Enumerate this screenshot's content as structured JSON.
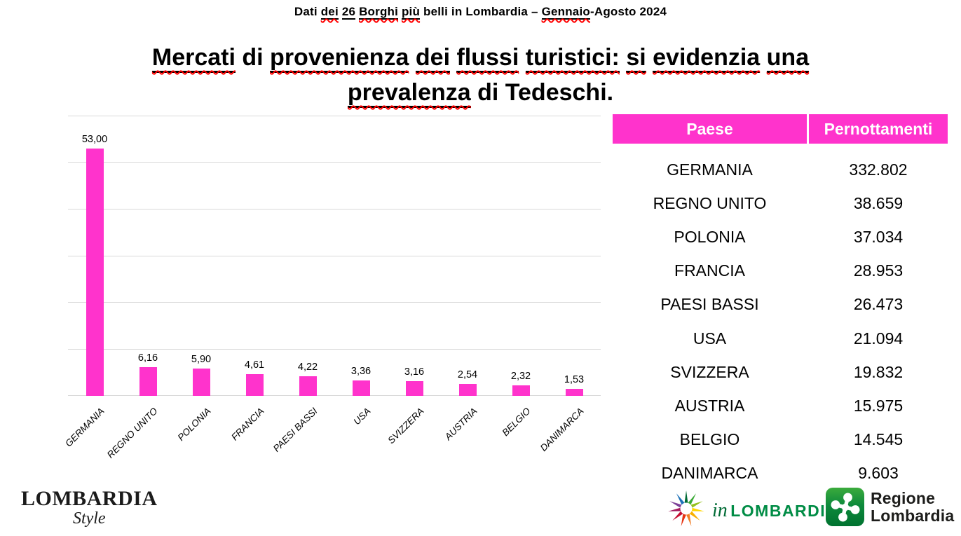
{
  "kicker": {
    "segments": [
      {
        "t": "Dati ",
        "u": false,
        "w": false
      },
      {
        "t": "dei",
        "u": true,
        "w": true
      },
      {
        "t": " ",
        "u": false,
        "w": false
      },
      {
        "t": "26",
        "u": true,
        "w": false
      },
      {
        "t": " ",
        "u": false,
        "w": false
      },
      {
        "t": "Borghi",
        "u": true,
        "w": true
      },
      {
        "t": " ",
        "u": false,
        "w": false
      },
      {
        "t": "più",
        "u": true,
        "w": true
      },
      {
        "t": " belli in Lombardia – ",
        "u": false,
        "w": false
      },
      {
        "t": "Gennaio",
        "u": true,
        "w": true
      },
      {
        "t": "-Agosto 2024",
        "u": false,
        "w": false
      }
    ]
  },
  "title": {
    "line1": {
      "segments": [
        {
          "t": "Mercati",
          "u": true,
          "w": true
        },
        {
          "t": " di ",
          "u": false,
          "w": false
        },
        {
          "t": "provenienza",
          "u": true,
          "w": true
        },
        {
          "t": " ",
          "u": false,
          "w": false
        },
        {
          "t": "dei",
          "u": true,
          "w": true
        },
        {
          "t": " ",
          "u": false,
          "w": false
        },
        {
          "t": "flussi",
          "u": true,
          "w": true
        },
        {
          "t": " ",
          "u": false,
          "w": false
        },
        {
          "t": "turistici:",
          "u": true,
          "w": true
        },
        {
          "t": " ",
          "u": false,
          "w": false
        },
        {
          "t": "si",
          "u": true,
          "w": true
        },
        {
          "t": " ",
          "u": false,
          "w": false
        },
        {
          "t": "evidenzia",
          "u": true,
          "w": true
        },
        {
          "t": " ",
          "u": false,
          "w": false
        },
        {
          "t": "una",
          "u": true,
          "w": true
        }
      ]
    },
    "line2": {
      "segments": [
        {
          "t": "prevalenza",
          "u": true,
          "w": true
        },
        {
          "t": " di Tedeschi.",
          "u": false,
          "w": false
        }
      ]
    }
  },
  "chart_data": {
    "type": "bar",
    "categories": [
      "GERMANIA",
      "REGNO UNITO",
      "POLONIA",
      "FRANCIA",
      "PAESI BASSI",
      "USA",
      "SVIZZERA",
      "AUSTRIA",
      "BELGIO",
      "DANIMARCA"
    ],
    "values": [
      53.0,
      6.16,
      5.9,
      4.61,
      4.22,
      3.36,
      3.16,
      2.54,
      2.32,
      1.53
    ],
    "value_labels": [
      "53,00",
      "6,16",
      "5,90",
      "4,61",
      "4,22",
      "3,36",
      "3,16",
      "2,54",
      "2,32",
      "1,53"
    ],
    "title": "",
    "xlabel": "",
    "ylabel": "",
    "ylim": [
      0,
      60
    ],
    "gridline_step": 10,
    "grid": true,
    "legend": false,
    "bar_color": "#FF33CC",
    "category_label_style": "italic, rotated 45deg",
    "value_label_decimal_separator": ","
  },
  "table": {
    "headers": [
      "Paese",
      "Pernottamenti"
    ],
    "rows": [
      [
        "GERMANIA",
        "332.802"
      ],
      [
        "REGNO UNITO",
        "38.659"
      ],
      [
        "POLONIA",
        "37.034"
      ],
      [
        "FRANCIA",
        "28.953"
      ],
      [
        "PAESI BASSI",
        "26.473"
      ],
      [
        "USA",
        "21.094"
      ],
      [
        "SVIZZERA",
        "19.832"
      ],
      [
        "AUSTRIA",
        "15.975"
      ],
      [
        "BELGIO",
        "14.545"
      ],
      [
        "DANIMARCA",
        "9.603"
      ]
    ],
    "header_bg": "#FF33CC",
    "header_text_color": "#FFFFFF"
  },
  "footer": {
    "brand": {
      "line1": "LOMBARDIA",
      "line2": "Style"
    },
    "inlombardia": {
      "prefix": "in",
      "name": "LOMBARDIA",
      "icon": "starburst-multicolor-icon",
      "name_color": "#008C45"
    },
    "regione": {
      "line1": "Regione",
      "line2": "Lombardia",
      "icon": "rosa-camuna-icon",
      "square_color": "#0E8A3C"
    }
  },
  "colors": {
    "bar_pink": "#FF33CC",
    "gridline": "#D9D9D9",
    "squiggle_red": "#FF0000"
  }
}
